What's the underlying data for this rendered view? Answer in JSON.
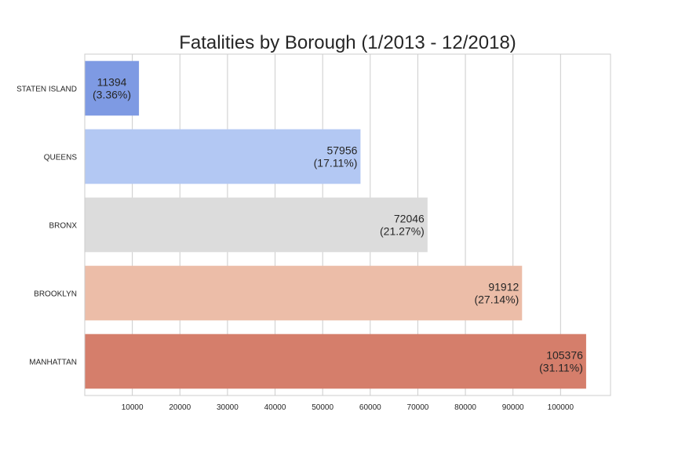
{
  "chart_data": {
    "type": "bar",
    "orientation": "horizontal",
    "title": "Fatalities by Borough (1/2013 - 12/2018)",
    "xlabel": "",
    "ylabel": "",
    "xlim": [
      0,
      110500
    ],
    "xticks": [
      10000,
      20000,
      30000,
      40000,
      50000,
      60000,
      70000,
      80000,
      90000,
      100000
    ],
    "grid": "vertical",
    "legend": "none",
    "categories": [
      "STATEN ISLAND",
      "QUEENS",
      "BRONX",
      "BROOKLYN",
      "MANHATTAN"
    ],
    "values": [
      11394,
      57956,
      72046,
      91912,
      105376
    ],
    "percent_labels": [
      "(3.36%)",
      "(17.11%)",
      "(21.27%)",
      "(27.14%)",
      "(31.11%)"
    ],
    "colors": [
      "#7e9ae3",
      "#b3c8f3",
      "#dcdcdc",
      "#ecbda8",
      "#d57e6b"
    ]
  }
}
